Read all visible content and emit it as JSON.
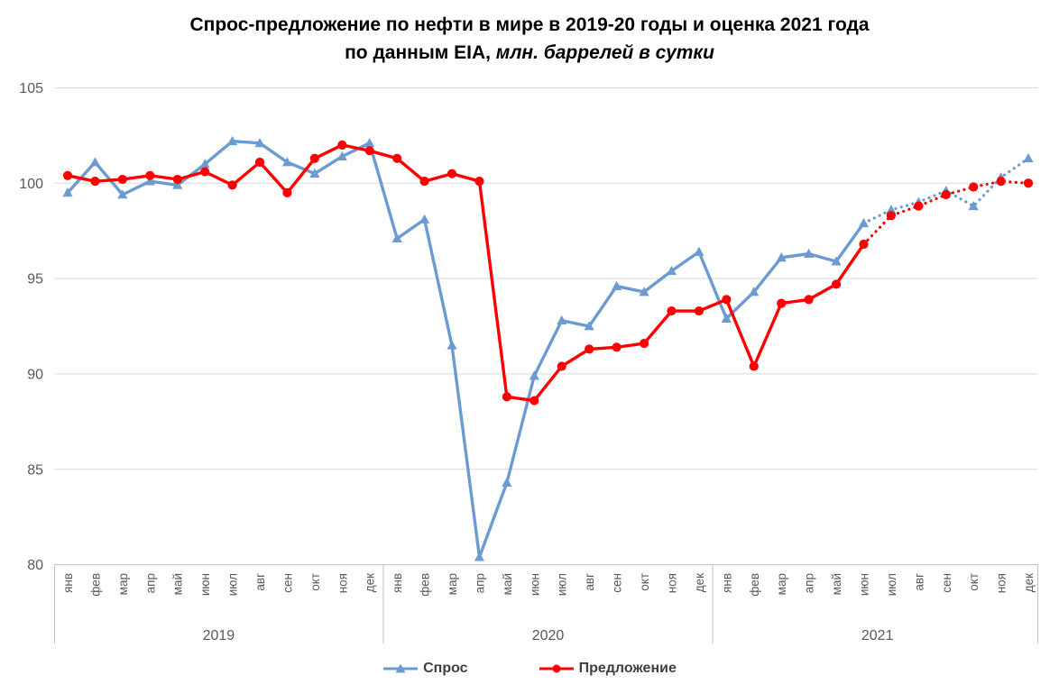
{
  "title": {
    "line1": "Спрос-предложение по нефти в мире в 2019-20 годы и оценка 2021 года",
    "line2_bold": "по данным EIA,",
    "line2_italic": " млн. баррелей в сутки"
  },
  "chart_data": {
    "type": "line",
    "years": [
      "2019",
      "2020",
      "2021"
    ],
    "months": [
      "янв",
      "фев",
      "мар",
      "апр",
      "май",
      "июн",
      "июл",
      "авг",
      "сен",
      "окт",
      "ноя",
      "дек"
    ],
    "y_axis": {
      "min": 80,
      "max": 105,
      "step": 5,
      "ticks": [
        105,
        100,
        95,
        90,
        85,
        80
      ]
    },
    "grid": true,
    "legend_position": "bottom",
    "estimate_dotted_from_month_index": 29,
    "series": [
      {
        "name": "Спрос",
        "marker": "triangle",
        "color": "#6B9BD2",
        "values": [
          99.5,
          101.1,
          99.4,
          100.1,
          99.9,
          101.0,
          102.2,
          102.1,
          101.1,
          100.5,
          101.4,
          102.1,
          97.1,
          98.1,
          91.5,
          80.4,
          84.3,
          89.9,
          92.8,
          92.5,
          94.6,
          94.3,
          95.4,
          96.4,
          92.9,
          94.3,
          96.1,
          96.3,
          95.9,
          97.9,
          98.6,
          99.0,
          99.6,
          98.8,
          100.3,
          101.3
        ]
      },
      {
        "name": "Предложение",
        "marker": "circle",
        "color": "#FF0000",
        "values": [
          100.4,
          100.1,
          100.2,
          100.4,
          100.2,
          100.6,
          99.9,
          101.1,
          99.5,
          101.3,
          102.0,
          101.7,
          101.3,
          100.1,
          100.5,
          100.1,
          88.8,
          88.6,
          90.4,
          91.3,
          91.4,
          91.6,
          93.3,
          93.3,
          93.9,
          90.4,
          93.7,
          93.9,
          94.7,
          96.8,
          98.3,
          98.8,
          99.4,
          99.8,
          100.1,
          100.0
        ]
      }
    ],
    "colors": {
      "gridline": "#D9D9D9",
      "axis_line": "#BFBFBF",
      "tick_text": "#595959",
      "legend_text": "#404040",
      "title_text": "#000000"
    }
  }
}
